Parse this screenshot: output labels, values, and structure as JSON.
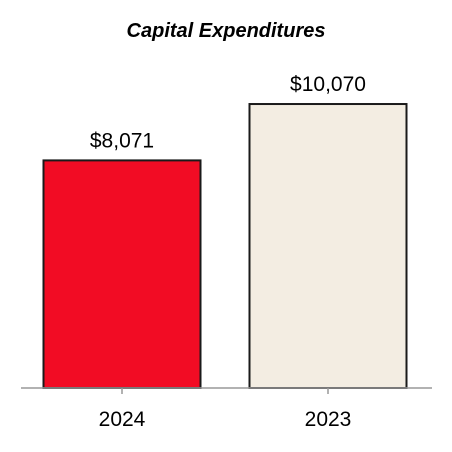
{
  "chart_data": {
    "type": "bar",
    "title": "Capital Expenditures",
    "xlabel": "",
    "ylabel": "",
    "categories": [
      "2024",
      "2023"
    ],
    "values": [
      8071,
      10070
    ],
    "value_labels": [
      "$8,071",
      "$10,070"
    ],
    "ylim": [
      0,
      11000
    ],
    "grid": false,
    "colors": [
      "#f20c24",
      "#f3ede2"
    ],
    "bar_outline_color": "#1a1a1a",
    "axis_color": "#999999"
  }
}
